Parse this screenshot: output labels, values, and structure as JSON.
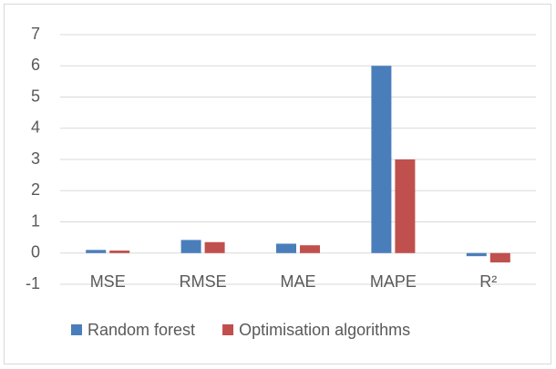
{
  "chart_data": {
    "type": "bar",
    "categories": [
      "MSE",
      "RMSE",
      "MAE",
      "MAPE",
      "R²"
    ],
    "series": [
      {
        "name": "Random forest",
        "color": "#4a7ebb",
        "values": [
          0.1,
          0.42,
          0.3,
          6.0,
          -0.1
        ]
      },
      {
        "name": "Optimisation algorithms",
        "color": "#c0504d",
        "values": [
          0.08,
          0.35,
          0.25,
          3.0,
          -0.3
        ]
      }
    ],
    "ylim": [
      -1,
      7
    ],
    "yticks": [
      -1,
      0,
      1,
      2,
      3,
      4,
      5,
      6,
      7
    ],
    "grid": true,
    "legend": "bottom"
  }
}
